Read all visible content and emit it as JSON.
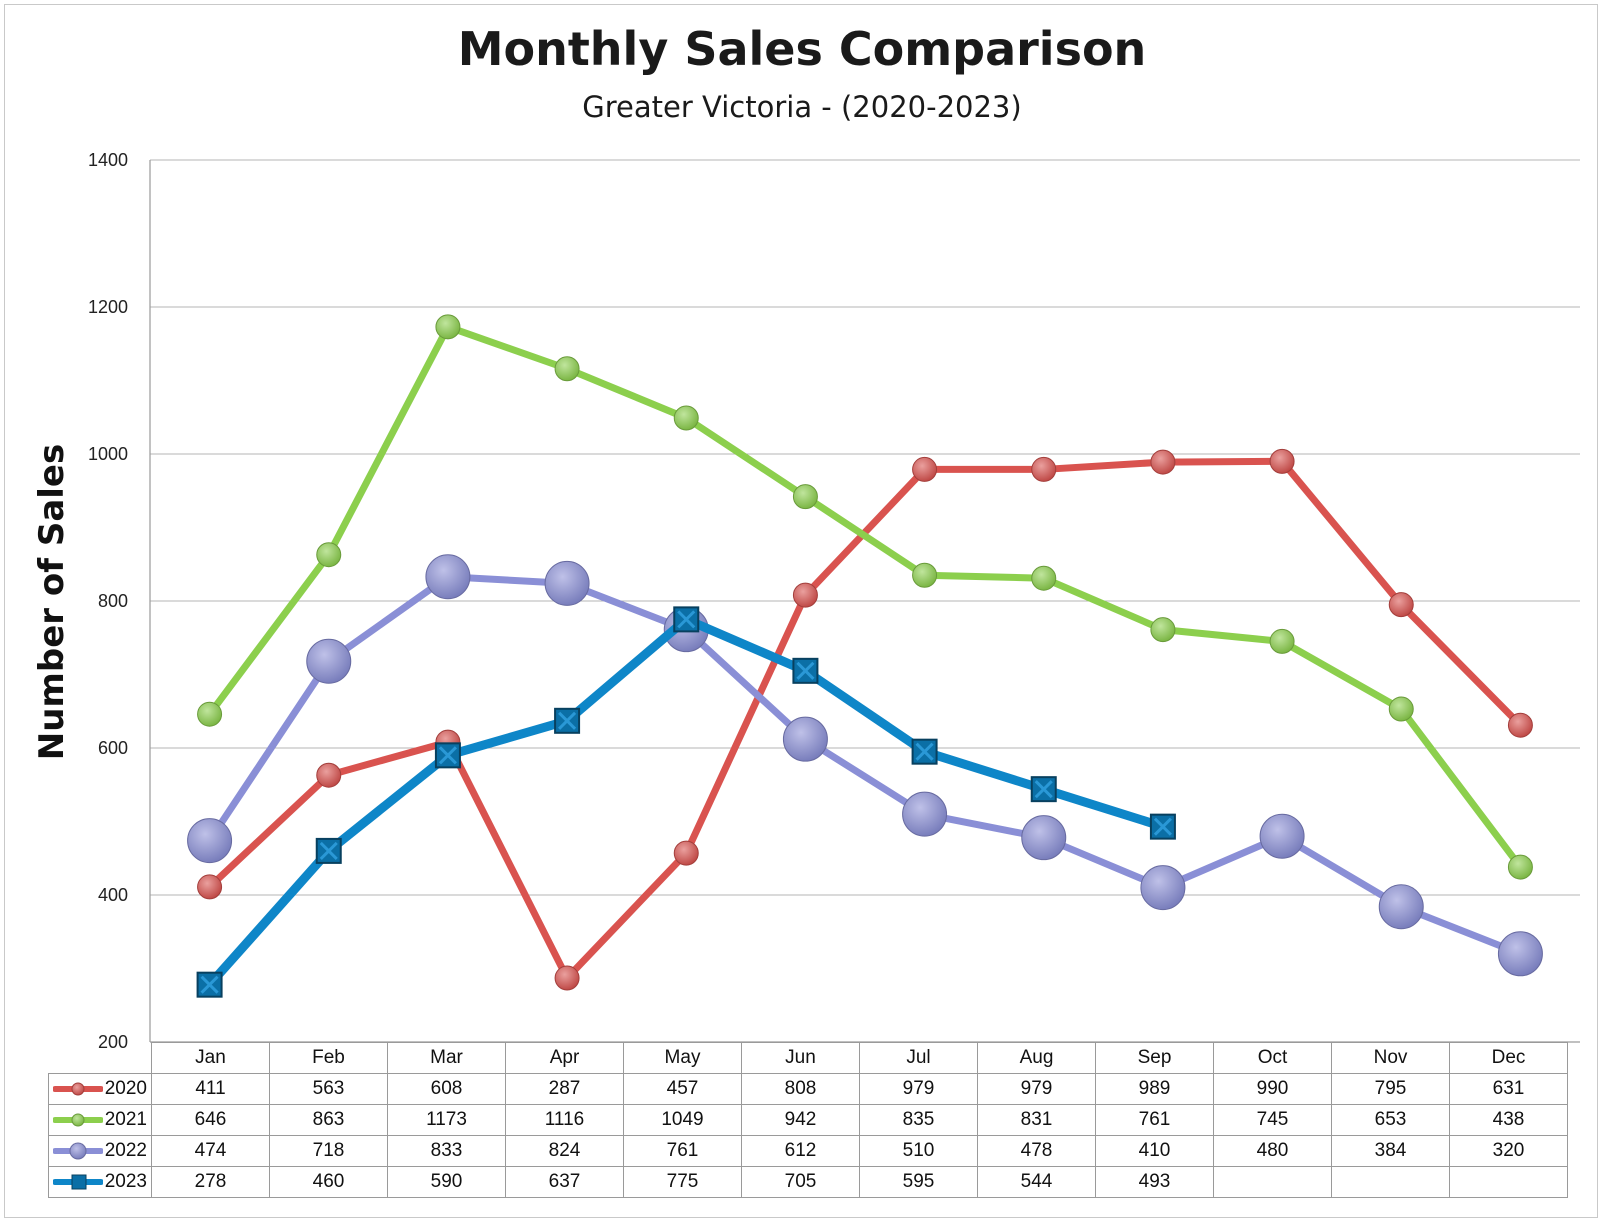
{
  "chart_data": {
    "type": "line",
    "title": "Monthly Sales Comparison",
    "subtitle": "Greater Victoria - (2020-2023)",
    "xlabel": "",
    "ylabel": "Number of Sales",
    "ylim": [
      200,
      1400
    ],
    "yticks": [
      200,
      400,
      600,
      800,
      1000,
      1200,
      1400
    ],
    "grid": true,
    "legend": "data-table",
    "categories": [
      "Jan",
      "Feb",
      "Mar",
      "Apr",
      "May",
      "Jun",
      "Jul",
      "Aug",
      "Sep",
      "Oct",
      "Nov",
      "Dec"
    ],
    "series": [
      {
        "name": "2020",
        "color": "#d9534f",
        "marker": "circle-small",
        "values": [
          411,
          563,
          608,
          287,
          457,
          808,
          979,
          979,
          989,
          990,
          795,
          631
        ]
      },
      {
        "name": "2021",
        "color": "#8ccf4d",
        "marker": "circle-small",
        "values": [
          646,
          863,
          1173,
          1116,
          1049,
          942,
          835,
          831,
          761,
          745,
          653,
          438
        ]
      },
      {
        "name": "2022",
        "color": "#8a8fd6",
        "marker": "circle-large",
        "values": [
          474,
          718,
          833,
          824,
          761,
          612,
          510,
          478,
          410,
          480,
          384,
          320
        ]
      },
      {
        "name": "2023",
        "color": "#0e86c8",
        "marker": "square",
        "values": [
          278,
          460,
          590,
          637,
          775,
          705,
          595,
          544,
          493,
          null,
          null,
          null
        ]
      }
    ]
  }
}
